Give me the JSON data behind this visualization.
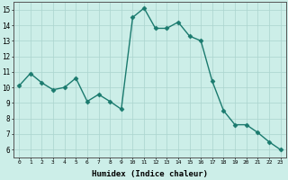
{
  "x": [
    0,
    1,
    2,
    3,
    4,
    5,
    6,
    7,
    8,
    9,
    10,
    11,
    12,
    13,
    14,
    15,
    16,
    17,
    18,
    19,
    20,
    21,
    22,
    23
  ],
  "y": [
    10.1,
    10.9,
    10.3,
    9.85,
    10.0,
    10.6,
    9.1,
    9.55,
    9.1,
    8.6,
    14.5,
    15.1,
    13.8,
    13.8,
    14.2,
    13.3,
    13.0,
    10.4,
    8.5,
    7.6,
    7.6,
    7.1,
    6.5,
    6.0
  ],
  "line_color": "#1a7a6e",
  "bg_color": "#cceee8",
  "grid_color": "#aad4ce",
  "xlabel": "Humidex (Indice chaleur)",
  "ylim": [
    5.5,
    15.5
  ],
  "xlim": [
    -0.5,
    23.5
  ],
  "yticks": [
    6,
    7,
    8,
    9,
    10,
    11,
    12,
    13,
    14,
    15
  ],
  "xticks": [
    0,
    1,
    2,
    3,
    4,
    5,
    6,
    7,
    8,
    9,
    10,
    11,
    12,
    13,
    14,
    15,
    16,
    17,
    18,
    19,
    20,
    21,
    22,
    23
  ],
  "marker_size": 2.5,
  "line_width": 1.0
}
